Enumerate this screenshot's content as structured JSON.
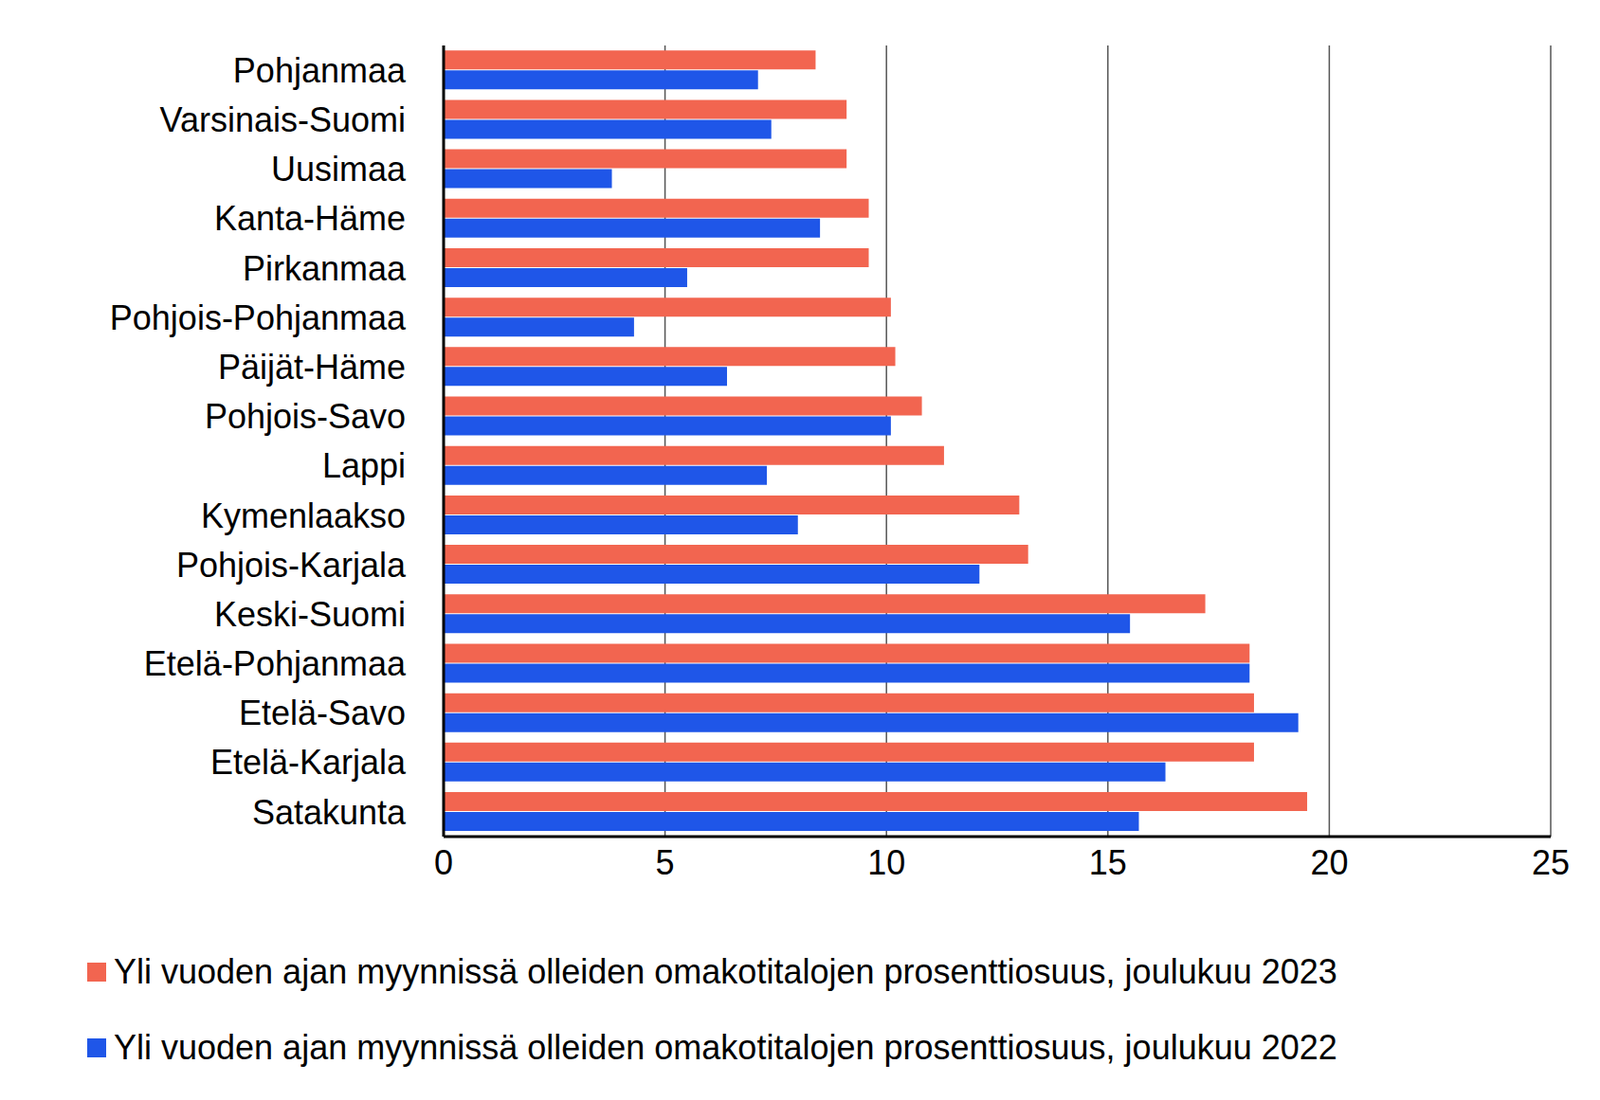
{
  "chart_data": {
    "type": "bar",
    "orientation": "horizontal",
    "categories": [
      "Pohjanmaa",
      "Varsinais-Suomi",
      "Uusimaa",
      "Kanta-Häme",
      "Pirkanmaa",
      "Pohjois-Pohjanmaa",
      "Päijät-Häme",
      "Pohjois-Savo",
      "Lappi",
      "Kymenlaakso",
      "Pohjois-Karjala",
      "Keski-Suomi",
      "Etelä-Pohjanmaa",
      "Etelä-Savo",
      "Etelä-Karjala",
      "Satakunta"
    ],
    "series": [
      {
        "name": "Yli vuoden ajan myynnissä olleiden omakotitalojen prosenttiosuus, joulukuu 2023",
        "color": "#f26550",
        "values": [
          8.4,
          9.1,
          9.1,
          9.6,
          9.6,
          10.1,
          10.2,
          10.8,
          11.3,
          13.0,
          13.2,
          17.2,
          18.2,
          18.3,
          18.3,
          19.5
        ]
      },
      {
        "name": "Yli vuoden ajan myynnissä olleiden omakotitalojen prosenttiosuus, joulukuu 2022",
        "color": "#1f56e8",
        "values": [
          7.1,
          7.4,
          3.8,
          8.5,
          5.5,
          4.3,
          6.4,
          10.1,
          7.3,
          8.0,
          12.1,
          15.5,
          18.2,
          19.3,
          16.3,
          15.7
        ]
      }
    ],
    "xlim": [
      0,
      25
    ],
    "xticks": [
      0,
      5,
      10,
      15,
      20,
      25
    ],
    "grid": true,
    "legend": "bottom"
  }
}
